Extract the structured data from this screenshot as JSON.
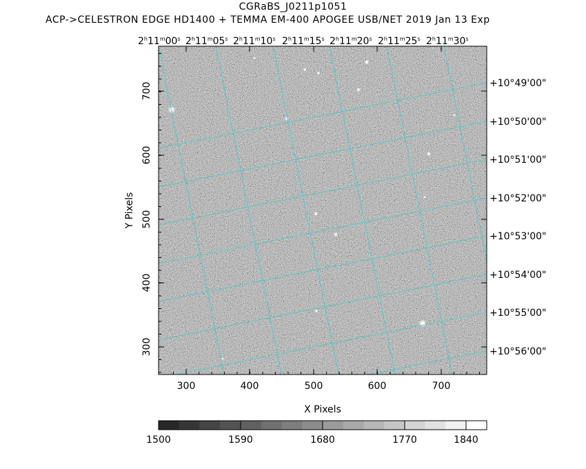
{
  "header": {
    "title": "CGRaBS_J0211p1051",
    "subtitle": "ACP->CELESTRON EDGE HD1400 + TEMMA EM-400 APOGEE USB/NET   2019 Jan 13    Exp"
  },
  "axes": {
    "xlabel": "X Pixels",
    "ylabel": "Y Pixels",
    "xticks": [
      "300",
      "400",
      "500",
      "600",
      "700"
    ],
    "yticks": [
      "300",
      "400",
      "500",
      "600",
      "700"
    ],
    "ra_ticks": [
      {
        "h": "2",
        "m": "11",
        "s": "00"
      },
      {
        "h": "2",
        "m": "11",
        "s": "05"
      },
      {
        "h": "2",
        "m": "11",
        "s": "10"
      },
      {
        "h": "2",
        "m": "11",
        "s": "15"
      },
      {
        "h": "2",
        "m": "11",
        "s": "20"
      },
      {
        "h": "2",
        "m": "11",
        "s": "25"
      },
      {
        "h": "2",
        "m": "11",
        "s": "30"
      }
    ],
    "dec_ticks": [
      "+10°49'00\"",
      "+10°50'00\"",
      "+10°51'00\"",
      "+10°52'00\"",
      "+10°53'00\"",
      "+10°54'00\"",
      "+10°55'00\"",
      "+10°56'00\""
    ]
  },
  "colorbar": {
    "labels": [
      "1500",
      "1590",
      "1680",
      "1770",
      "1840"
    ]
  },
  "colors": {
    "grid": "#59c6c8",
    "frame": "#000000"
  }
}
